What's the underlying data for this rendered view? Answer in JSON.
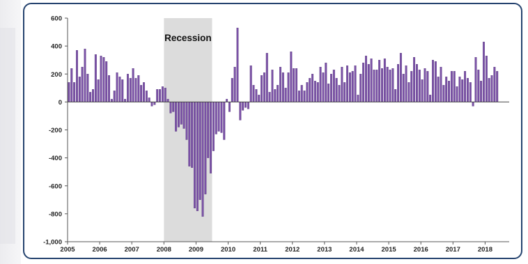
{
  "chart_data": {
    "type": "bar",
    "title": "",
    "xlabel": "",
    "ylabel": "",
    "ylim": [
      -1000,
      600
    ],
    "yticks": [
      600,
      400,
      200,
      0,
      -200,
      -400,
      -600,
      -800,
      -1000
    ],
    "ytick_labels": [
      "600",
      "400",
      "200",
      "0",
      "-200",
      "-400",
      "-600",
      "-800",
      "-1,000"
    ],
    "xlim": [
      2005,
      2018.75
    ],
    "xtick_labels": [
      "2005",
      "2006",
      "2007",
      "2008",
      "2009",
      "2010",
      "2011",
      "2012",
      "2013",
      "2014",
      "2015",
      "2016",
      "2017",
      "2018"
    ],
    "x_start": "2005-01",
    "frequency": "monthly",
    "grid": false,
    "colors": {
      "bar": "#7a51a6",
      "bar_edge": "#4d2e73",
      "recession": "#dcdcdc",
      "frame": "#24426e"
    },
    "annotations": [
      {
        "text": "Recession",
        "x_start": "2008-01",
        "x_end": "2009-06",
        "shaded": true
      }
    ],
    "series": [
      {
        "values": [
          140,
          240,
          140,
          370,
          180,
          250,
          380,
          200,
          70,
          90,
          340,
          160,
          330,
          320,
          290,
          190,
          20,
          80,
          210,
          180,
          160,
          20,
          200,
          170,
          240,
          170,
          190,
          120,
          140,
          80,
          30,
          -30,
          -20,
          90,
          90,
          110,
          100,
          20,
          -80,
          -70,
          -210,
          -180,
          -160,
          -190,
          -270,
          -460,
          -470,
          -760,
          -780,
          -700,
          -820,
          -660,
          -400,
          -510,
          -350,
          -230,
          -210,
          -220,
          -270,
          20,
          -70,
          170,
          250,
          530,
          -130,
          -60,
          -40,
          -50,
          260,
          120,
          90,
          50,
          190,
          210,
          350,
          70,
          230,
          90,
          120,
          250,
          210,
          100,
          210,
          360,
          240,
          240,
          80,
          120,
          80,
          140,
          170,
          200,
          150,
          140,
          250,
          210,
          280,
          130,
          200,
          230,
          170,
          120,
          250,
          140,
          260,
          210,
          220,
          260,
          50,
          200,
          280,
          330,
          270,
          310,
          230,
          230,
          300,
          240,
          310,
          250,
          230,
          240,
          90,
          270,
          350,
          200,
          260,
          140,
          220,
          320,
          270,
          230,
          160,
          240,
          220,
          50,
          300,
          290,
          180,
          250,
          120,
          180,
          150,
          220,
          220,
          110,
          180,
          160,
          220,
          170,
          140,
          -30,
          320,
          230,
          150,
          430,
          330,
          170,
          190,
          250,
          220
        ]
      }
    ]
  }
}
